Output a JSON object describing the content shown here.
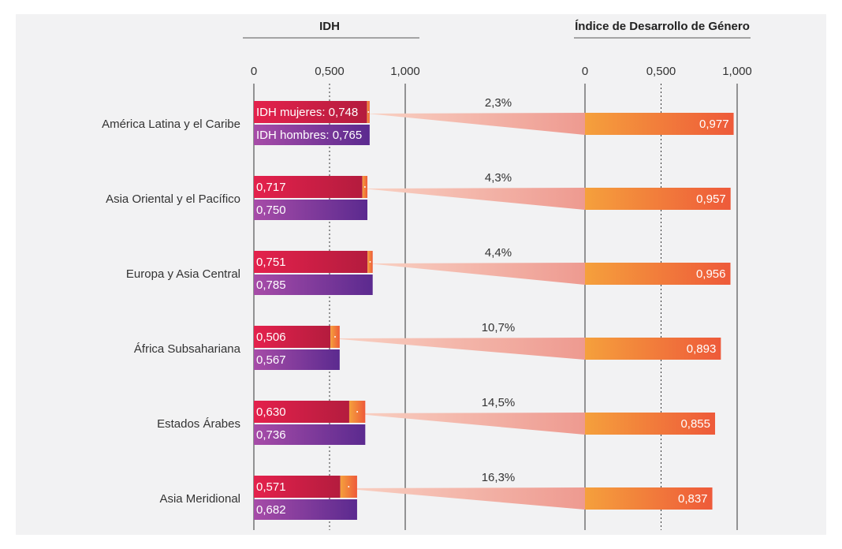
{
  "chart_data": [
    {
      "type": "hbar-pair",
      "title": "IDH",
      "categories": [
        "América Latina y el Caribe",
        "Asia Oriental y el Pacífico",
        "Europa y Asia Central",
        "África Subsahariana",
        "Estados Árabes",
        "Asia Meridional"
      ],
      "series": [
        {
          "color": "#d91f48",
          "values": [
            0.748,
            0.717,
            0.751,
            0.506,
            0.63,
            0.571
          ],
          "value_labels": [
            "IDH mujeres: 0,748",
            "0,717",
            "0,751",
            "0,506",
            "0,630",
            "0,571"
          ]
        },
        {
          "color": "#7a3499",
          "values": [
            0.765,
            0.75,
            0.785,
            0.567,
            0.736,
            0.682
          ],
          "value_labels": [
            "IDH hombres: 0,765",
            "0,750",
            "0,785",
            "0,567",
            "0,736",
            "0,682"
          ]
        }
      ],
      "xlim": [
        0,
        1
      ],
      "xticks": [
        0,
        {
          "value": 0.5,
          "label": "0,500"
        },
        {
          "value": 1,
          "label": "1,000"
        }
      ]
    },
    {
      "type": "hbar",
      "title": "Índice de Desarrollo de Género",
      "color": "#f0703e",
      "values": [
        0.977,
        0.957,
        0.956,
        0.893,
        0.855,
        0.837
      ],
      "value_labels": [
        "0,977",
        "0,957",
        "0,956",
        "0,893",
        "0,855",
        "0,837"
      ],
      "gaps": [
        2.3,
        4.3,
        4.4,
        10.7,
        14.5,
        16.3
      ],
      "gap_labels": [
        "2,3%",
        "4,3%",
        "4,4%",
        "10,7%",
        "14,5%",
        "16,3%"
      ],
      "xlim": [
        0,
        1
      ],
      "xticks": [
        0,
        {
          "value": 0.5,
          "label": "0,500"
        },
        {
          "value": 1,
          "label": "1,000"
        }
      ]
    }
  ]
}
